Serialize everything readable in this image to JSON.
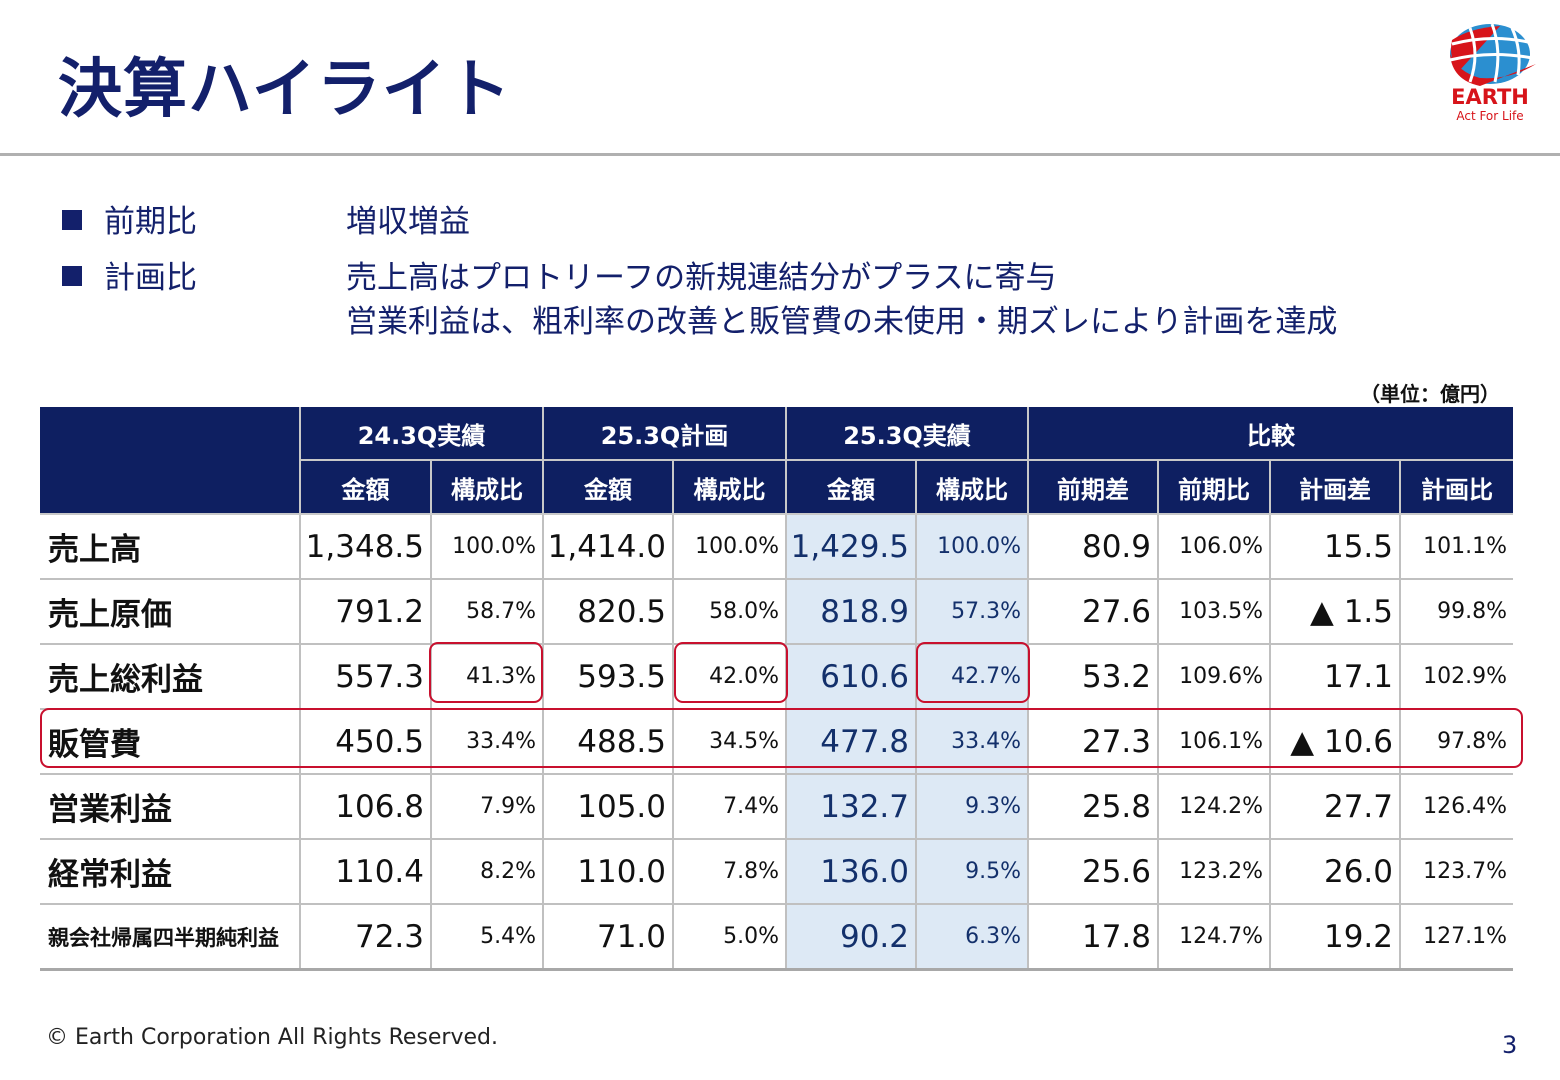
{
  "title": "決算ハイライト",
  "logo": {
    "brand": "EARTH",
    "tagline": "Act For Life"
  },
  "bullets": [
    {
      "label": "前期比",
      "lines": [
        "増収増益"
      ]
    },
    {
      "label": "計画比",
      "lines": [
        "売上高はプロトリーフの新規連結分がプラスに寄与",
        "営業利益は、粗利率の改善と販管費の未使用・期ズレにより計画を達成"
      ]
    }
  ],
  "unit": "（単位：億円）",
  "table": {
    "groups": [
      "24.3Q実績",
      "25.3Q計画",
      "25.3Q実績",
      "比較"
    ],
    "subheaders": [
      "金額",
      "構成比",
      "金額",
      "構成比",
      "金額",
      "構成比",
      "前期差",
      "前期比",
      "計画差",
      "計画比"
    ],
    "rows": [
      {
        "label": "売上高",
        "values": [
          "1,348.5",
          "100.0%",
          "1,414.0",
          "100.0%",
          "1,429.5",
          "100.0%",
          "80.9",
          "106.0%",
          "15.5",
          "101.1%"
        ]
      },
      {
        "label": "売上原価",
        "values": [
          "791.2",
          "58.7%",
          "820.5",
          "58.0%",
          "818.9",
          "57.3%",
          "27.6",
          "103.5%",
          "▲ 1.5",
          "99.8%"
        ]
      },
      {
        "label": "売上総利益",
        "values": [
          "557.3",
          "41.3%",
          "593.5",
          "42.0%",
          "610.6",
          "42.7%",
          "53.2",
          "109.6%",
          "17.1",
          "102.9%"
        ]
      },
      {
        "label": "販管費",
        "values": [
          "450.5",
          "33.4%",
          "488.5",
          "34.5%",
          "477.8",
          "33.4%",
          "27.3",
          "106.1%",
          "▲ 10.6",
          "97.8%"
        ]
      },
      {
        "label": "営業利益",
        "values": [
          "106.8",
          "7.9%",
          "105.0",
          "7.4%",
          "132.7",
          "9.3%",
          "25.8",
          "124.2%",
          "27.7",
          "126.4%"
        ]
      },
      {
        "label": "経常利益",
        "values": [
          "110.4",
          "8.2%",
          "110.0",
          "7.8%",
          "136.0",
          "9.5%",
          "25.6",
          "123.2%",
          "26.0",
          "123.7%"
        ]
      },
      {
        "label": "親会社帰属四半期純利益",
        "values": [
          "72.3",
          "5.4%",
          "71.0",
          "5.0%",
          "90.2",
          "6.3%",
          "17.8",
          "124.7%",
          "19.2",
          "127.1%"
        ]
      }
    ]
  },
  "colors": {
    "navy": "#0e1f61",
    "highlight": "#dde9f5",
    "red": "#c8102e"
  },
  "footer": "© Earth Corporation  All Rights Reserved.",
  "page_number": "3"
}
